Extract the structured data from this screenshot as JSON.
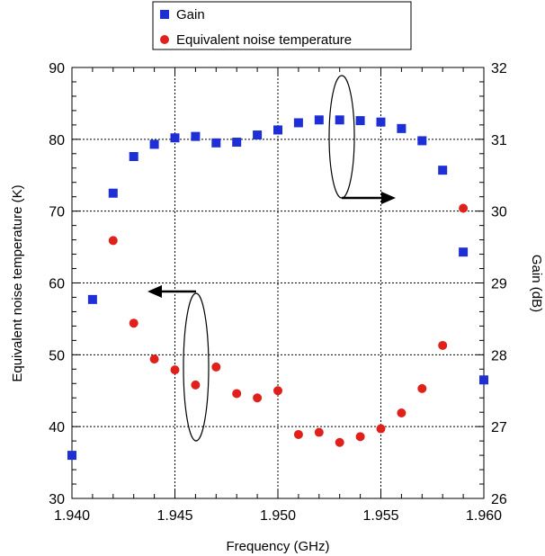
{
  "chart_data": {
    "type": "scatter",
    "xlabel": "Frequency (GHz)",
    "ylabel_left": "Equivalent noise temperature (K)",
    "ylabel_right": "Gain (dB)",
    "xlim": [
      1.94,
      1.96
    ],
    "ylim_left": [
      30,
      90
    ],
    "ylim_right": [
      26,
      32
    ],
    "x_ticks": [
      "1.940",
      "1.945",
      "1.950",
      "1.955",
      "1.960"
    ],
    "y_left_ticks": [
      "30",
      "40",
      "50",
      "60",
      "70",
      "80",
      "90"
    ],
    "y_right_ticks": [
      "26",
      "27",
      "28",
      "29",
      "30",
      "31",
      "32"
    ],
    "grid": true,
    "legend_position": "top",
    "series": [
      {
        "name": "Gain",
        "axis": "right",
        "marker": "square",
        "color": "#1f2fd6",
        "x": [
          1.94,
          1.941,
          1.942,
          1.943,
          1.944,
          1.945,
          1.946,
          1.947,
          1.948,
          1.949,
          1.95,
          1.951,
          1.952,
          1.953,
          1.954,
          1.955,
          1.956,
          1.957,
          1.958,
          1.959,
          1.96
        ],
        "y": [
          26.6,
          28.77,
          30.25,
          30.76,
          30.93,
          31.02,
          31.04,
          30.95,
          30.96,
          31.06,
          31.13,
          31.23,
          31.27,
          31.27,
          31.26,
          31.24,
          31.15,
          30.98,
          30.57,
          29.43,
          27.65
        ]
      },
      {
        "name": "Equivalent noise temperature",
        "axis": "left",
        "marker": "circle",
        "color": "#e0201b",
        "x": [
          1.942,
          1.943,
          1.944,
          1.945,
          1.946,
          1.947,
          1.948,
          1.949,
          1.95,
          1.951,
          1.952,
          1.953,
          1.954,
          1.955,
          1.956,
          1.957,
          1.958,
          1.959
        ],
        "y": [
          65.9,
          54.4,
          49.4,
          47.9,
          45.8,
          48.3,
          44.6,
          44.0,
          45.0,
          38.9,
          39.2,
          37.8,
          38.6,
          39.7,
          41.9,
          45.3,
          51.3,
          70.4
        ]
      }
    ]
  }
}
